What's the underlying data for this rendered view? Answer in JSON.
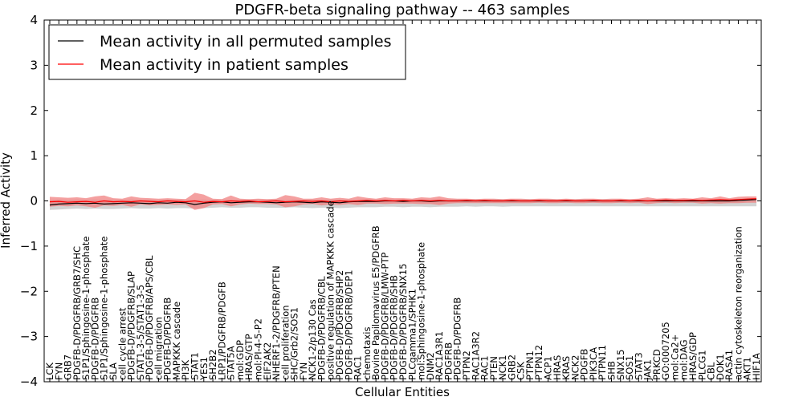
{
  "chart_data": {
    "type": "line",
    "title": "PDGFR-beta signaling pathway -- 463 samples",
    "xlabel": "Cellular Entities",
    "ylabel": "Inferred Activity",
    "ylim": [
      -4,
      4
    ],
    "yticks": [
      "4",
      "3",
      "2",
      "1",
      "0",
      "−1",
      "−2",
      "−3",
      "−4"
    ],
    "ytick_values": [
      4,
      3,
      2,
      1,
      0,
      -1,
      -2,
      -3,
      -4
    ],
    "legend": {
      "placement": "top-left",
      "entries": [
        "Mean activity in all permuted samples",
        "Mean activity in patient samples"
      ]
    },
    "colors": {
      "permuted": "#000000",
      "patient": "#ff0000",
      "patient_band": "#f08080",
      "permuted_band": "#c8c8c8"
    },
    "categories": [
      "LCK",
      "FYN",
      "GRB7",
      "PDGFB-D/PDGFRB/GRB7/SHC",
      "S1P1/Sphingosine-1-phosphate",
      "PDGFB-D/PDGFRB",
      "S1P1/Sphingosine-1-phosphate",
      "SLA",
      "cell cycle arrest",
      "PDGFB-D/PDGFRB/SLAP",
      "STAT1-3-5/STAT1-3-5",
      "PDGFB-D/PDGFRB/APS/CBL",
      "cell migration",
      "PDGFB-D/PDGFRB",
      "MAPKKK cascade",
      "PI3K",
      "STAT1",
      "YES1",
      "SH2B2",
      "LRP1/PDGFRB/PDGFB",
      "STAT5A",
      "mol:GDP",
      "HRAS/GTP",
      "mol:PI-4-5-P2",
      "EIF2AK2",
      "NHERF1-2/PDGFRB/PTEN",
      "cell proliferation",
      "SHC/Grb2/SOS1",
      "FYN",
      "NCK1-2/p130 Cas",
      "PDGFB-D/PDGFRB/CBL",
      "positive regulation of MAPKKK cascade",
      "PDGFB-D/PDGFRB/SHP2",
      "PDGFB-D/PDGFRB/DEP1",
      "RAC1",
      "chemotaxis",
      "Bovine Papilomavirus E5/PDGFRB",
      "PDGFB-D/PDGFRB/LMW-PTP",
      "PDGFB-D/PDGFRB/SHB",
      "PDGFB-D/PDGFRB/SNX15",
      "PLCgamma1/SPHK1",
      "mol:Sphingosine-1-phosphate",
      "DNM2",
      "RAC1A3R1",
      "PDGFRB",
      "PDGFB-D/PDGFRB",
      "PTPN2",
      "RAC1A3R2",
      "RAC1",
      "PTEN",
      "NCK1",
      "GRB2",
      "CSK",
      "PTPN1",
      "PTPN12",
      "ACP1",
      "HRAS",
      "KRAS",
      "NCK2",
      "PDGFB",
      "PIK3CA",
      "PTPN11",
      "SHB",
      "SNX15",
      "SOS1",
      "STAT3",
      "JAK1",
      "PRKCD",
      "GO:0007205",
      "mol:Ca2+",
      "mol:DAG",
      "HRAS/GDP",
      "PLCG1",
      "CBL",
      "DOK1",
      "RASA1",
      "actin cytoskeleton reorganization",
      "AKT1",
      "HIF1A"
    ],
    "series": [
      {
        "name": "Mean activity in all permuted samples",
        "values": [
          -0.09,
          -0.07,
          -0.06,
          -0.05,
          -0.06,
          -0.05,
          -0.07,
          -0.06,
          -0.05,
          -0.04,
          -0.05,
          -0.06,
          -0.04,
          -0.05,
          -0.03,
          -0.04,
          -0.08,
          -0.05,
          -0.03,
          -0.02,
          -0.04,
          -0.03,
          -0.02,
          -0.02,
          -0.03,
          -0.04,
          -0.03,
          -0.02,
          -0.03,
          -0.04,
          -0.02,
          -0.03,
          -0.04,
          -0.02,
          -0.01,
          -0.01,
          -0.01,
          0.0,
          0.0,
          -0.01,
          0.0,
          0.0,
          -0.01,
          0.0,
          0.0,
          0.0,
          0.0,
          0.0,
          0.0,
          0.0,
          0.0,
          0.0,
          0.0,
          0.0,
          0.0,
          0.0,
          0.0,
          0.0,
          0.0,
          0.0,
          0.0,
          0.0,
          0.0,
          0.0,
          0.0,
          0.0,
          0.0,
          0.0,
          0.0,
          0.0,
          0.0,
          0.0,
          0.0,
          0.0,
          0.0,
          0.0,
          0.01,
          0.02,
          0.03
        ]
      },
      {
        "name": "Mean activity in patient samples",
        "values": [
          -0.02,
          -0.01,
          -0.03,
          -0.02,
          -0.01,
          -0.03,
          0.0,
          -0.02,
          -0.01,
          -0.02,
          0.0,
          -0.01,
          -0.02,
          0.0,
          -0.01,
          -0.02,
          0.0,
          -0.03,
          -0.01,
          -0.02,
          0.0,
          -0.01,
          0.0,
          -0.02,
          -0.01,
          0.0,
          -0.02,
          -0.01,
          0.0,
          -0.01,
          0.0,
          -0.02,
          0.0,
          -0.01,
          0.0,
          0.01,
          0.0,
          0.01,
          0.0,
          0.01,
          0.0,
          0.01,
          0.0,
          0.01,
          0.0,
          0.0,
          0.01,
          0.0,
          0.01,
          0.0,
          0.0,
          0.01,
          0.0,
          0.0,
          0.01,
          0.0,
          0.0,
          0.01,
          0.0,
          0.0,
          0.01,
          0.0,
          0.0,
          0.01,
          0.0,
          0.01,
          0.0,
          0.01,
          0.02,
          0.01,
          0.01,
          0.02,
          0.01,
          0.02,
          0.03,
          0.02,
          0.03,
          0.04,
          0.05
        ]
      }
    ],
    "patient_band": {
      "upper": [
        0.09,
        0.08,
        0.07,
        0.08,
        0.06,
        0.1,
        0.12,
        0.06,
        0.05,
        0.1,
        0.07,
        0.06,
        0.05,
        0.06,
        0.05,
        0.04,
        0.18,
        0.14,
        0.05,
        0.04,
        0.12,
        0.05,
        0.04,
        0.05,
        0.04,
        0.05,
        0.13,
        0.1,
        0.05,
        0.05,
        0.08,
        0.05,
        0.07,
        0.05,
        0.1,
        0.07,
        0.05,
        0.08,
        0.06,
        0.06,
        0.05,
        0.08,
        0.07,
        0.1,
        0.06,
        0.05,
        0.05,
        0.04,
        0.05,
        0.05,
        0.04,
        0.05,
        0.05,
        0.04,
        0.05,
        0.05,
        0.04,
        0.05,
        0.04,
        0.05,
        0.05,
        0.04,
        0.05,
        0.05,
        0.04,
        0.05,
        0.08,
        0.05,
        0.06,
        0.05,
        0.06,
        0.05,
        0.08,
        0.06,
        0.1,
        0.06,
        0.09,
        0.1,
        0.1
      ],
      "lower": [
        -0.13,
        -0.11,
        -0.12,
        -0.1,
        -0.12,
        -0.15,
        -0.1,
        -0.11,
        -0.09,
        -0.13,
        -0.08,
        -0.1,
        -0.09,
        -0.08,
        -0.09,
        -0.08,
        -0.2,
        -0.16,
        -0.08,
        -0.07,
        -0.12,
        -0.08,
        -0.06,
        -0.07,
        -0.07,
        -0.08,
        -0.14,
        -0.12,
        -0.08,
        -0.07,
        -0.1,
        -0.08,
        -0.09,
        -0.07,
        -0.09,
        -0.06,
        -0.06,
        -0.07,
        -0.06,
        -0.06,
        -0.06,
        -0.07,
        -0.07,
        -0.09,
        -0.06,
        -0.05,
        -0.05,
        -0.05,
        -0.05,
        -0.05,
        -0.05,
        -0.05,
        -0.05,
        -0.05,
        -0.04,
        -0.05,
        -0.05,
        -0.04,
        -0.05,
        -0.05,
        -0.04,
        -0.05,
        -0.05,
        -0.04,
        -0.05,
        -0.04,
        -0.07,
        -0.05,
        -0.04,
        -0.05,
        -0.04,
        -0.04,
        -0.06,
        -0.05,
        -0.06,
        -0.05,
        -0.05,
        -0.04,
        -0.04
      ]
    },
    "permuted_band": {
      "upper": [
        0.02,
        0.03,
        0.02,
        0.03,
        0.02,
        0.03,
        0.02,
        0.03,
        0.02,
        0.03,
        0.02,
        0.03,
        0.02,
        0.03,
        0.02,
        0.03,
        0.02,
        0.03,
        0.02,
        0.03,
        0.02,
        0.03,
        0.02,
        0.03,
        0.02,
        0.03,
        0.02,
        0.03,
        0.02,
        0.03,
        0.02,
        0.03,
        0.02,
        0.03,
        0.02,
        0.03,
        0.02,
        0.03,
        0.02,
        0.03,
        0.02,
        0.03,
        0.02,
        0.03,
        0.02,
        0.03,
        0.02,
        0.03,
        0.02,
        0.03,
        0.02,
        0.03,
        0.02,
        0.03,
        0.02,
        0.03,
        0.02,
        0.03,
        0.02,
        0.03,
        0.02,
        0.03,
        0.02,
        0.03,
        0.02,
        0.03,
        0.02,
        0.03,
        0.02,
        0.03,
        0.02,
        0.03,
        0.02,
        0.03,
        0.02,
        0.03,
        0.02,
        0.03,
        0.02
      ],
      "lower": [
        -0.2,
        -0.19,
        -0.18,
        -0.17,
        -0.18,
        -0.17,
        -0.18,
        -0.18,
        -0.17,
        -0.16,
        -0.17,
        -0.17,
        -0.16,
        -0.17,
        -0.16,
        -0.16,
        -0.17,
        -0.16,
        -0.15,
        -0.14,
        -0.15,
        -0.15,
        -0.14,
        -0.14,
        -0.15,
        -0.15,
        -0.15,
        -0.14,
        -0.15,
        -0.16,
        -0.15,
        -0.15,
        -0.16,
        -0.15,
        -0.14,
        -0.14,
        -0.14,
        -0.13,
        -0.13,
        -0.14,
        -0.13,
        -0.13,
        -0.14,
        -0.13,
        -0.13,
        -0.13,
        -0.12,
        -0.13,
        -0.12,
        -0.12,
        -0.13,
        -0.12,
        -0.12,
        -0.12,
        -0.12,
        -0.12,
        -0.12,
        -0.12,
        -0.12,
        -0.12,
        -0.12,
        -0.12,
        -0.12,
        -0.12,
        -0.12,
        -0.12,
        -0.12,
        -0.12,
        -0.12,
        -0.12,
        -0.12,
        -0.12,
        -0.12,
        -0.12,
        -0.12,
        -0.12,
        -0.12,
        -0.12,
        -0.12
      ]
    }
  }
}
